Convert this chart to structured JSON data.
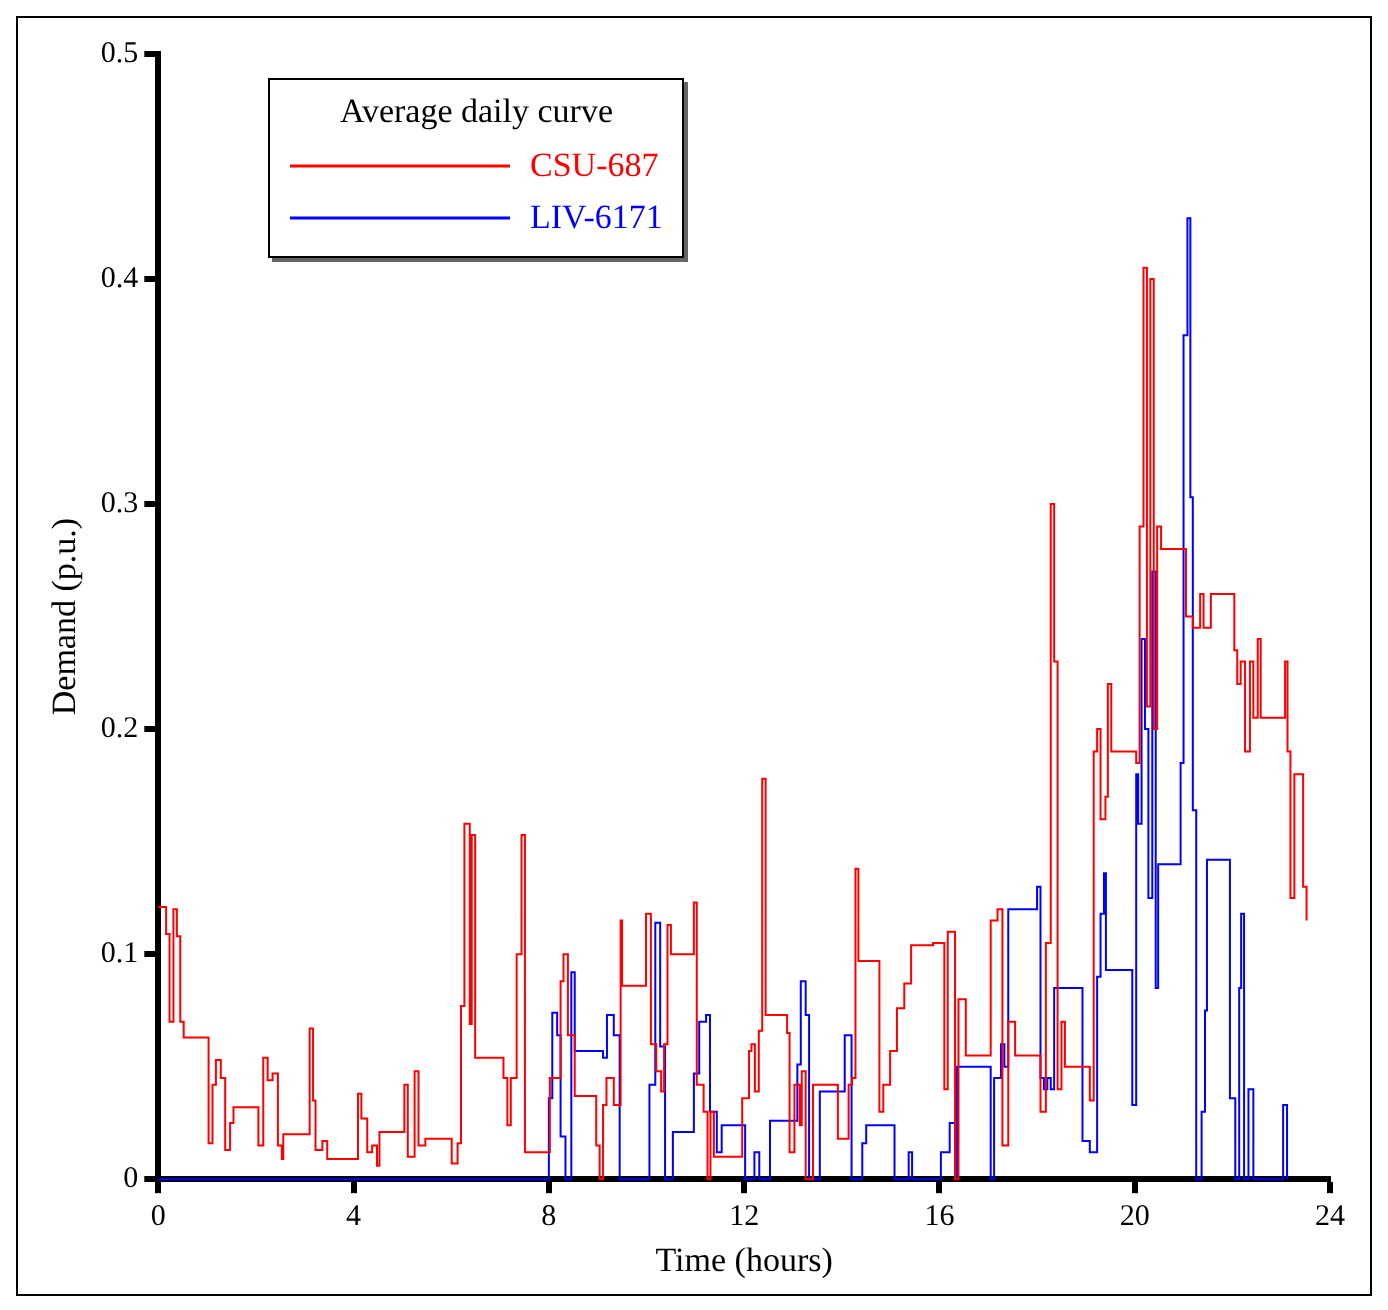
{
  "chart_data": {
    "type": "step",
    "xlabel": "Time (hours)",
    "ylabel": "Demand (p.u.)",
    "legend_title": "Average daily curve",
    "legend": "top left",
    "grid": false,
    "xlim": [
      0,
      24
    ],
    "xticks": [
      0,
      4,
      8,
      12,
      16,
      20,
      24
    ],
    "ylim": [
      0,
      0.5
    ],
    "yticks": [
      0,
      0.1,
      0.2,
      0.3,
      0.4,
      0.5
    ],
    "series": [
      {
        "name": "CSU-687",
        "color": "#ff0000",
        "x": [
          0,
          0.16,
          0.23,
          0.31,
          0.38,
          0.45,
          0.52,
          1.03,
          1.11,
          1.18,
          1.28,
          1.37,
          1.47,
          1.54,
          2.05,
          2.15,
          2.24,
          2.34,
          2.45,
          2.53,
          2.56,
          3.1,
          3.17,
          3.22,
          3.36,
          3.46,
          3.58,
          4.09,
          4.16,
          4.28,
          4.38,
          4.48,
          4.53,
          5.04,
          5.11,
          5.25,
          5.33,
          5.47,
          6.01,
          6.13,
          6.2,
          6.27,
          6.38,
          6.42,
          6.49,
          7.07,
          7.15,
          7.22,
          7.34,
          7.44,
          7.51,
          7.95,
          8.02,
          8.24,
          8.3,
          8.39,
          8.53,
          8.97,
          9.04,
          9.11,
          9.18,
          9.33,
          9.47,
          9.5,
          9.99,
          10.09,
          10.2,
          10.3,
          10.36,
          10.43,
          10.5,
          10.97,
          11.03,
          11.17,
          11.25,
          11.31,
          11.38,
          11.89,
          11.96,
          12.1,
          12.15,
          12.22,
          12.3,
          12.37,
          12.44,
          12.88,
          12.93,
          13.03,
          13.14,
          13.18,
          13.26,
          13.41,
          13.85,
          13.92,
          14.14,
          14.21,
          14.28,
          14.34,
          14.77,
          14.85,
          14.99,
          15.13,
          15.28,
          15.42,
          15.87,
          16.1,
          16.17,
          16.32,
          16.39,
          16.54,
          17.05,
          17.19,
          17.29,
          17.41,
          17.55,
          18.07,
          18.18,
          18.28,
          18.35,
          18.42,
          18.5,
          18.57,
          19.08,
          19.16,
          19.23,
          19.3,
          19.4,
          19.45,
          19.52,
          20.03,
          20.1,
          20.18,
          20.25,
          20.32,
          20.39,
          20.46,
          20.54,
          21.05,
          21.19,
          21.34,
          21.41,
          21.56,
          22.04,
          22.1,
          22.17,
          22.26,
          22.36,
          22.43,
          22.52,
          22.58,
          23.08,
          23.13,
          23.19,
          23.27,
          23.38,
          23.45,
          23.52
        ],
        "values": [
          0.121,
          0.109,
          0.07,
          0.12,
          0.108,
          0.07,
          0.063,
          0.016,
          0.042,
          0.053,
          0.045,
          0.013,
          0.025,
          0.032,
          0.015,
          0.054,
          0.044,
          0.047,
          0.015,
          0.009,
          0.02,
          0.067,
          0.035,
          0.013,
          0.017,
          0.009,
          0.009,
          0.038,
          0.027,
          0.012,
          0.015,
          0.006,
          0.021,
          0.042,
          0.01,
          0.048,
          0.015,
          0.018,
          0.007,
          0.016,
          0.077,
          0.158,
          0.069,
          0.153,
          0.054,
          0.045,
          0.024,
          0.045,
          0.1,
          0.153,
          0.012,
          0.012,
          0.045,
          0.088,
          0.1,
          0.064,
          0.037,
          0.015,
          0,
          0.033,
          0.045,
          0.033,
          0.115,
          0.086,
          0.118,
          0.06,
          0.048,
          0.039,
          0.06,
          0.113,
          0.1,
          0.123,
          0.042,
          0.03,
          0,
          0.03,
          0.01,
          0.01,
          0.036,
          0.057,
          0.06,
          0.039,
          0.066,
          0.178,
          0.073,
          0.065,
          0.012,
          0.042,
          0.024,
          0.048,
          0,
          0.042,
          0.042,
          0.018,
          0.042,
          0.045,
          0.138,
          0.097,
          0.03,
          0.042,
          0.057,
          0.076,
          0.087,
          0.104,
          0.105,
          0.04,
          0.11,
          0,
          0.08,
          0.055,
          0.115,
          0.12,
          0.015,
          0.07,
          0.055,
          0.03,
          0.105,
          0.3,
          0.23,
          0.04,
          0.07,
          0.05,
          0.035,
          0.19,
          0.2,
          0.16,
          0.17,
          0.22,
          0.19,
          0.185,
          0.29,
          0.405,
          0.21,
          0.4,
          0.2,
          0.29,
          0.28,
          0.25,
          0.245,
          0.26,
          0.245,
          0.26,
          0.235,
          0.22,
          0.23,
          0.19,
          0.23,
          0.205,
          0.24,
          0.205,
          0.23,
          0.19,
          0.125,
          0.18,
          0.18,
          0.13,
          0.115
        ]
      },
      {
        "name": "LIV-6171",
        "color": "#0000ff",
        "x": [
          0,
          7.95,
          8.0,
          8.07,
          8.17,
          8.24,
          8.34,
          8.46,
          8.53,
          9.11,
          9.19,
          9.33,
          9.45,
          10.06,
          10.18,
          10.28,
          10.38,
          10.54,
          10.97,
          11.08,
          11.22,
          11.3,
          11.44,
          11.54,
          12.02,
          12.21,
          12.31,
          12.53,
          13.09,
          13.16,
          13.26,
          13.33,
          13.55,
          14.06,
          14.2,
          14.42,
          14.5,
          15.08,
          15.37,
          15.44,
          16.03,
          16.21,
          16.32,
          16.36,
          17.05,
          17.12,
          17.26,
          17.33,
          17.41,
          17.53,
          18.0,
          18.07,
          18.14,
          18.21,
          18.28,
          18.35,
          18.43,
          18.93,
          19.08,
          19.23,
          19.3,
          19.37,
          19.41,
          19.48,
          19.54,
          19.95,
          20.03,
          20.07,
          20.14,
          20.21,
          20.28,
          20.36,
          20.43,
          20.48,
          20.9,
          20.94,
          21.0,
          21.08,
          21.14,
          21.19,
          21.26,
          21.37,
          21.44,
          21.48,
          21.89,
          21.95,
          22.06,
          22.14,
          22.18,
          22.24,
          22.33,
          22.43,
          22.97,
          23.04,
          23.12
        ],
        "values": [
          0,
          0,
          0.036,
          0.074,
          0.064,
          0.019,
          0,
          0.092,
          0.057,
          0.054,
          0.073,
          0.064,
          0,
          0.042,
          0.114,
          0.059,
          0,
          0.021,
          0.047,
          0.07,
          0.073,
          0.03,
          0.012,
          0.024,
          0,
          0.012,
          0,
          0.026,
          0.051,
          0.088,
          0.073,
          0,
          0.039,
          0.064,
          0,
          0.016,
          0.024,
          0,
          0.012,
          0,
          0.012,
          0.025,
          0,
          0.05,
          0,
          0.045,
          0.06,
          0.05,
          0.12,
          0.12,
          0.13,
          0.045,
          0.04,
          0.045,
          0.04,
          0.085,
          0.085,
          0.017,
          0.012,
          0.09,
          0.118,
          0.136,
          0.093,
          0.093,
          0.093,
          0.033,
          0.18,
          0.158,
          0.24,
          0.2,
          0.125,
          0.27,
          0.085,
          0.14,
          0.14,
          0.185,
          0.375,
          0.427,
          0.303,
          0.164,
          0,
          0.03,
          0.075,
          0.142,
          0.142,
          0.036,
          0,
          0.085,
          0.118,
          0,
          0.04,
          0,
          0,
          0.033,
          0
        ]
      }
    ]
  }
}
